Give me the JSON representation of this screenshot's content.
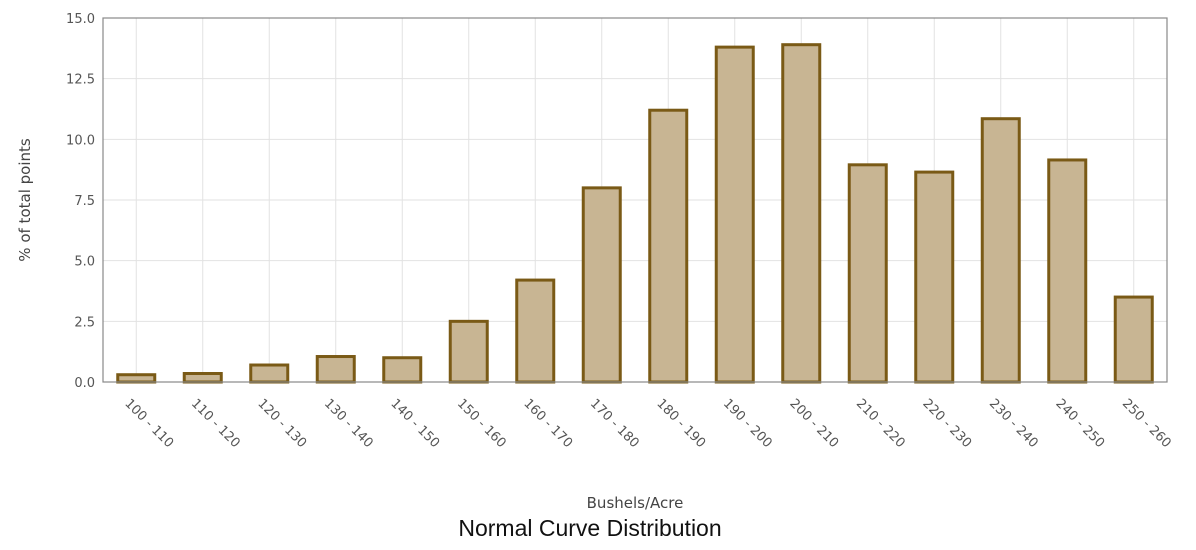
{
  "chart_data": {
    "type": "bar",
    "title": "Normal Curve Distribution",
    "xlabel": "Bushels/Acre",
    "ylabel": "% of total points",
    "categories": [
      "100 - 110",
      "110 - 120",
      "120 - 130",
      "130 - 140",
      "140 - 150",
      "150 - 160",
      "160 - 170",
      "170 - 180",
      "180 - 190",
      "190 - 200",
      "200 - 210",
      "210 - 220",
      "220 - 230",
      "230 - 240",
      "240 - 250",
      "250 - 260"
    ],
    "values": [
      0.3,
      0.35,
      0.7,
      1.05,
      1.0,
      2.5,
      4.2,
      8.0,
      11.2,
      13.8,
      13.9,
      8.95,
      8.65,
      10.85,
      9.15,
      3.5
    ],
    "ylim": [
      0,
      15
    ],
    "yticks": [
      "0.0",
      "2.5",
      "5.0",
      "7.5",
      "10.0",
      "12.5",
      "15.0"
    ],
    "grid": true,
    "colors": {
      "bar_fill": "#c8b593",
      "bar_stroke": "#7a5a16"
    }
  }
}
